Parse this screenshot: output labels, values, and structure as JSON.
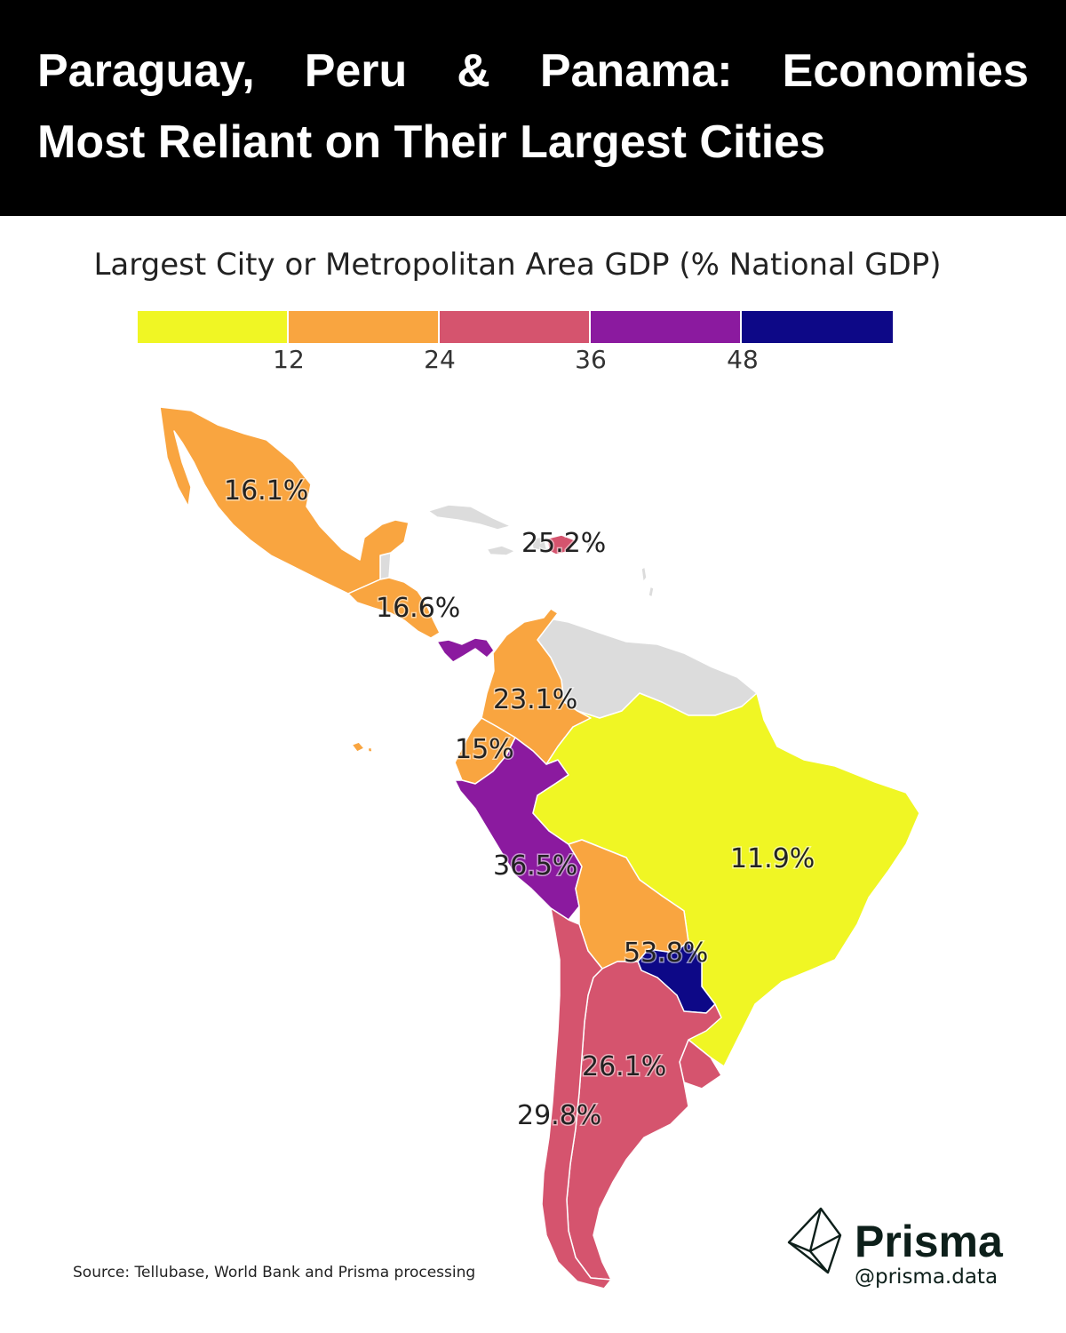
{
  "title": {
    "line1": "Paraguay, Peru & Panama: Economies",
    "line2": "Most Reliant on Their Largest Cities"
  },
  "subtitle": "Largest City or Metropolitan Area GDP (% National GDP)",
  "legend": {
    "bins": [
      {
        "color": "#f0f624"
      },
      {
        "color": "#f9a540"
      },
      {
        "color": "#d5546e"
      },
      {
        "color": "#8b1a9f"
      },
      {
        "color": "#0d0887"
      }
    ],
    "ticks": [
      "12",
      "24",
      "36",
      "48"
    ]
  },
  "colors": {
    "no_data": "#dcdcdc",
    "border": "#ffffff"
  },
  "regions": [
    {
      "name": "Mexico",
      "label": "16.1%",
      "value": 16.1
    },
    {
      "name": "Dominican Republic",
      "label": "25.2%",
      "value": 25.2
    },
    {
      "name": "Central America",
      "label": "16.6%",
      "value": 16.6
    },
    {
      "name": "Panama",
      "label": "",
      "value": null
    },
    {
      "name": "Colombia",
      "label": "23.1%",
      "value": 23.1
    },
    {
      "name": "Ecuador",
      "label": "15%",
      "value": 15
    },
    {
      "name": "Peru",
      "label": "36.5%",
      "value": 36.5
    },
    {
      "name": "Brazil",
      "label": "11.9%",
      "value": 11.9
    },
    {
      "name": "Bolivia",
      "label": "",
      "value": null
    },
    {
      "name": "Paraguay",
      "label": "53.8%",
      "value": 53.8
    },
    {
      "name": "Argentina",
      "label": "26.1%",
      "value": 26.1
    },
    {
      "name": "Chile",
      "label": "29.8%",
      "value": 29.8
    }
  ],
  "source": "Source: Tellubase, World Bank and Prisma processing",
  "brand": {
    "name": "Prisma",
    "handle": "@prisma.data",
    "logo_icon": "prism-icon"
  }
}
